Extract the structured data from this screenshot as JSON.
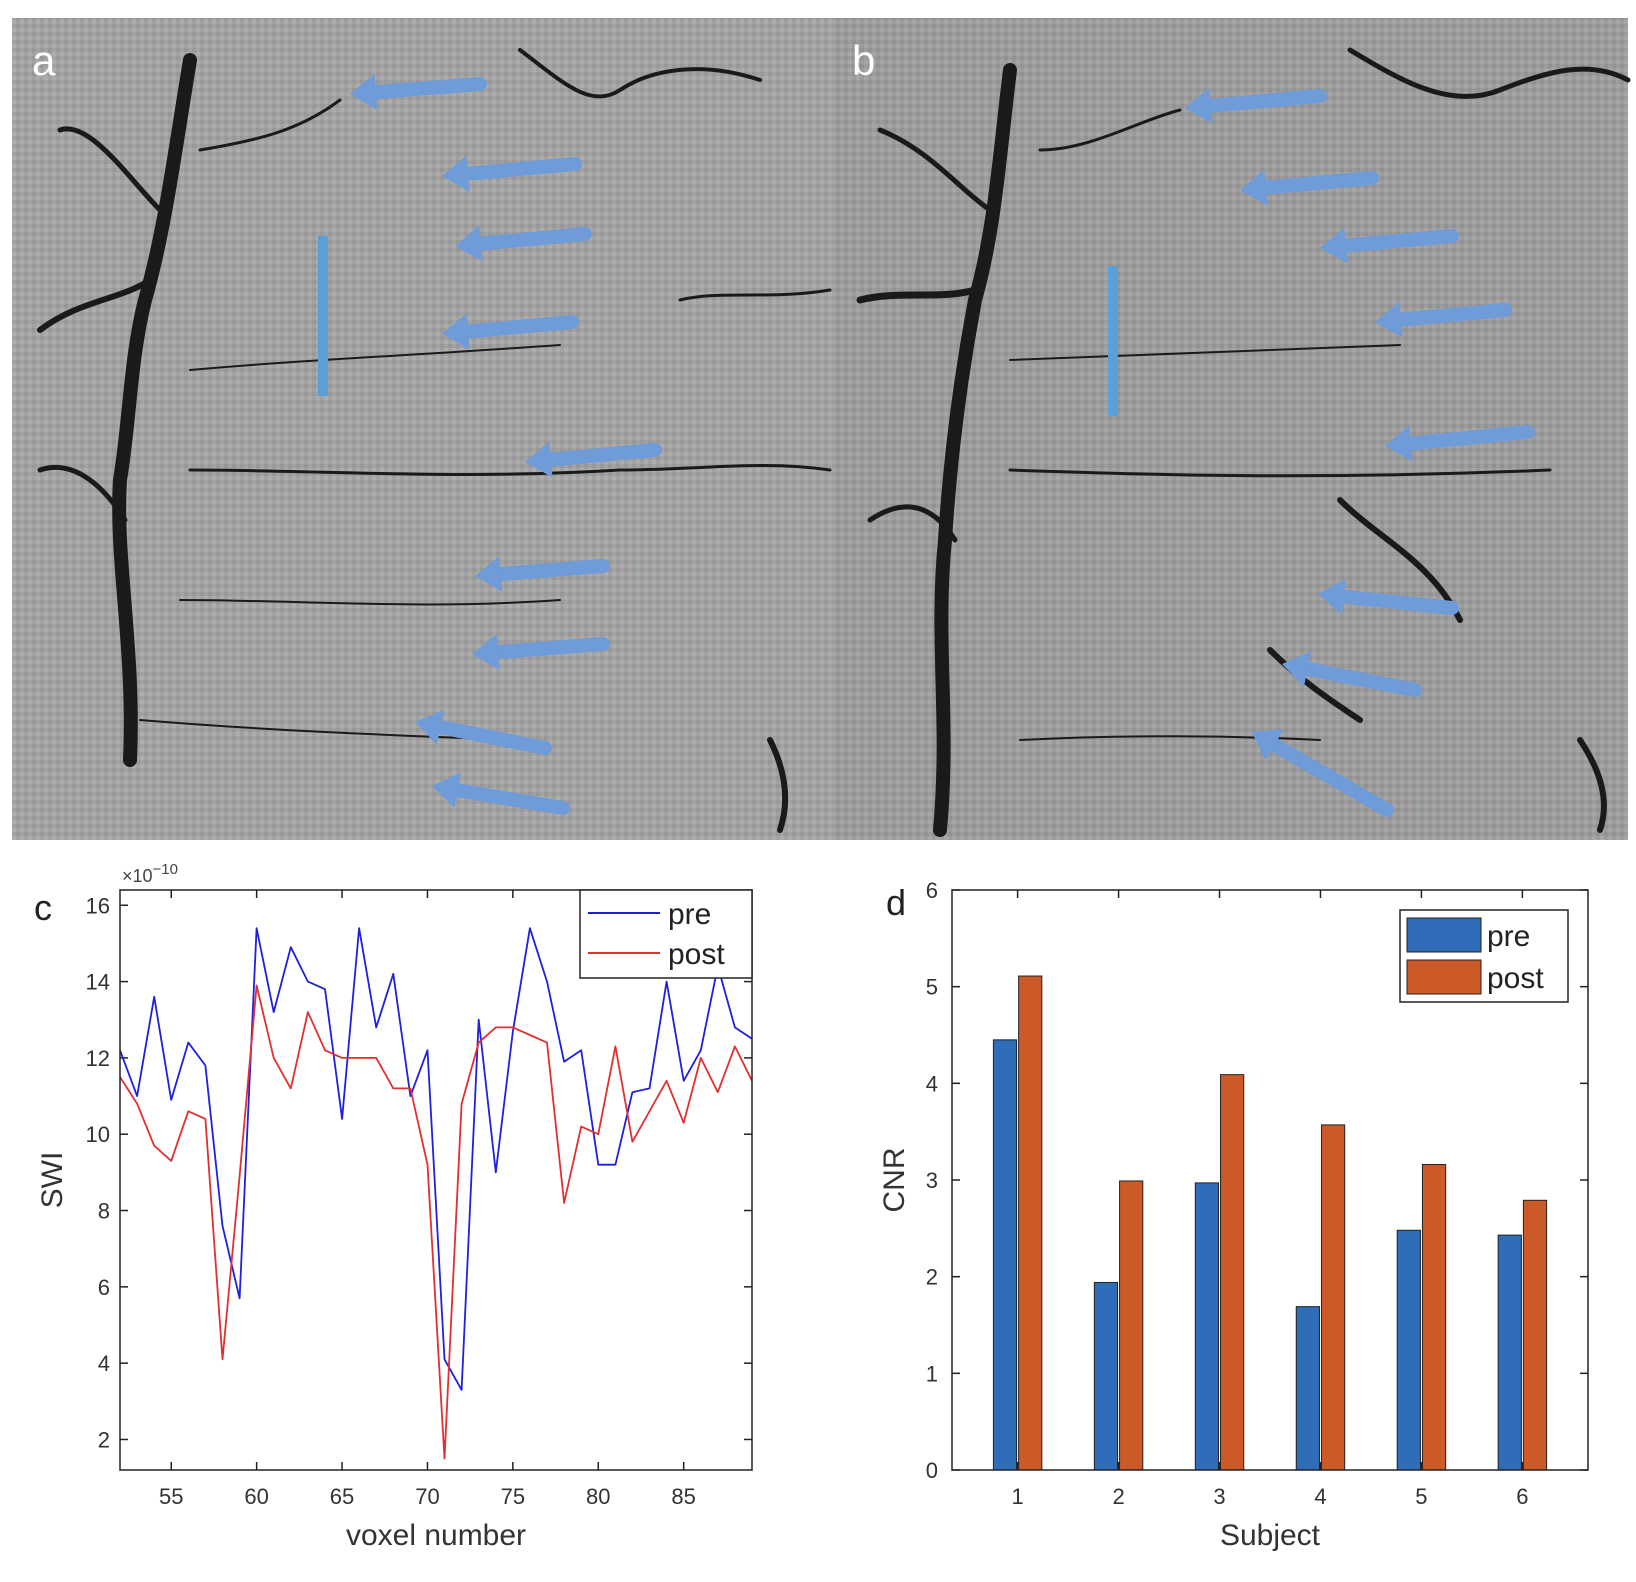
{
  "panels": {
    "a": {
      "label": "a",
      "arrow_color": "#6f9bd8",
      "arrow_count": 9,
      "profile_line_color": "#5aa0d8"
    },
    "b": {
      "label": "b",
      "arrow_color": "#6f9bd8",
      "arrow_count": 9,
      "profile_line_color": "#5aa0d8"
    },
    "c": {
      "label": "c"
    },
    "d": {
      "label": "d"
    }
  },
  "chart_data": [
    {
      "panel": "c",
      "type": "line",
      "xlabel": "voxel number",
      "ylabel": "SWI",
      "exponent_label": "×10",
      "exponent_power": "−10",
      "xlim": [
        52,
        89
      ],
      "ylim": [
        1.2,
        16.4
      ],
      "xticks": [
        55,
        60,
        65,
        70,
        75,
        80,
        85
      ],
      "yticks": [
        2,
        4,
        6,
        8,
        10,
        12,
        14,
        16
      ],
      "legend_position": "top-right",
      "x": [
        52,
        53,
        54,
        55,
        56,
        57,
        58,
        59,
        60,
        61,
        62,
        63,
        64,
        65,
        66,
        67,
        68,
        69,
        70,
        71,
        72,
        73,
        74,
        75,
        76,
        77,
        78,
        79,
        80,
        81,
        82,
        83,
        84,
        85,
        86,
        87,
        88,
        89
      ],
      "series": [
        {
          "name": "pre",
          "color": "#1f1fe0",
          "values": [
            12.2,
            11.0,
            13.6,
            10.9,
            12.4,
            11.8,
            7.6,
            5.7,
            15.4,
            13.2,
            14.9,
            14.0,
            13.8,
            10.4,
            15.4,
            12.8,
            14.2,
            11.0,
            12.2,
            4.1,
            3.3,
            13.0,
            9.0,
            12.7,
            15.4,
            14.0,
            11.9,
            12.2,
            9.2,
            9.2,
            11.1,
            11.2,
            14.0,
            11.4,
            12.2,
            14.4,
            12.8,
            12.5
          ]
        },
        {
          "name": "post",
          "color": "#e03030",
          "values": [
            11.5,
            10.8,
            9.7,
            9.3,
            10.6,
            10.4,
            4.1,
            8.9,
            13.9,
            12.0,
            11.2,
            13.2,
            12.2,
            12.0,
            12.0,
            12.0,
            11.2,
            11.2,
            9.2,
            1.5,
            10.8,
            12.4,
            12.8,
            12.8,
            12.6,
            12.4,
            8.2,
            10.2,
            10.0,
            12.3,
            9.8,
            10.6,
            11.4,
            10.3,
            12.0,
            11.1,
            12.3,
            11.4
          ]
        }
      ]
    },
    {
      "panel": "d",
      "type": "bar",
      "xlabel": "Subject",
      "ylabel": "CNR",
      "ylim": [
        0,
        6
      ],
      "yticks": [
        0,
        1,
        2,
        3,
        4,
        5,
        6
      ],
      "categories": [
        "1",
        "2",
        "3",
        "4",
        "5",
        "6"
      ],
      "legend_position": "top-right",
      "series": [
        {
          "name": "pre",
          "color": "#2f6db8",
          "values": [
            4.45,
            1.94,
            2.97,
            1.69,
            2.48,
            2.43
          ]
        },
        {
          "name": "post",
          "color": "#cc5a28",
          "values": [
            5.11,
            2.99,
            4.09,
            3.57,
            3.16,
            2.79
          ]
        }
      ]
    }
  ]
}
